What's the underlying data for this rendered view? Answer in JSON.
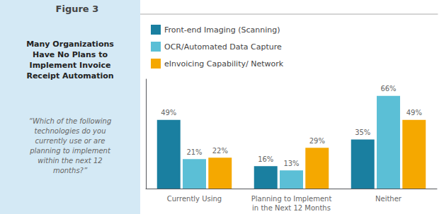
{
  "chart_data": {
    "type": "bar",
    "annotations": [
      "Figure 3"
    ],
    "title": "Many Organizations\nHave No Plans to\nImplement Invoice\nReceipt Automation",
    "subtitle": "“Which of the following\ntechnologies do you\ncurrently use or are\nplanning to implement\nwithin the next 12\nmonths?”",
    "categories": [
      "Currently Using",
      "Planning to Implement\nin the Next 12 Months",
      "Neither"
    ],
    "series": [
      {
        "name": "Front-end Imaging (Scanning)",
        "values": [
          49,
          16,
          35
        ],
        "value_labels": [
          "49%",
          "16%",
          "35%"
        ],
        "color": "#1a7fa0"
      },
      {
        "name": "OCR/Automated Data Capture",
        "values": [
          21,
          13,
          66
        ],
        "value_labels": [
          "21%",
          "13%",
          "66%"
        ],
        "color": "#5bbfd6"
      },
      {
        "name": "eInvoicing Capability/ Network",
        "values": [
          22,
          29,
          49
        ],
        "value_labels": [
          "22%",
          "29%",
          "49%"
        ],
        "color": "#f5a800"
      }
    ],
    "ylim": [
      0,
      78
    ],
    "data_labels": true,
    "tick_labels": "x",
    "grid": false,
    "legend": "top"
  }
}
